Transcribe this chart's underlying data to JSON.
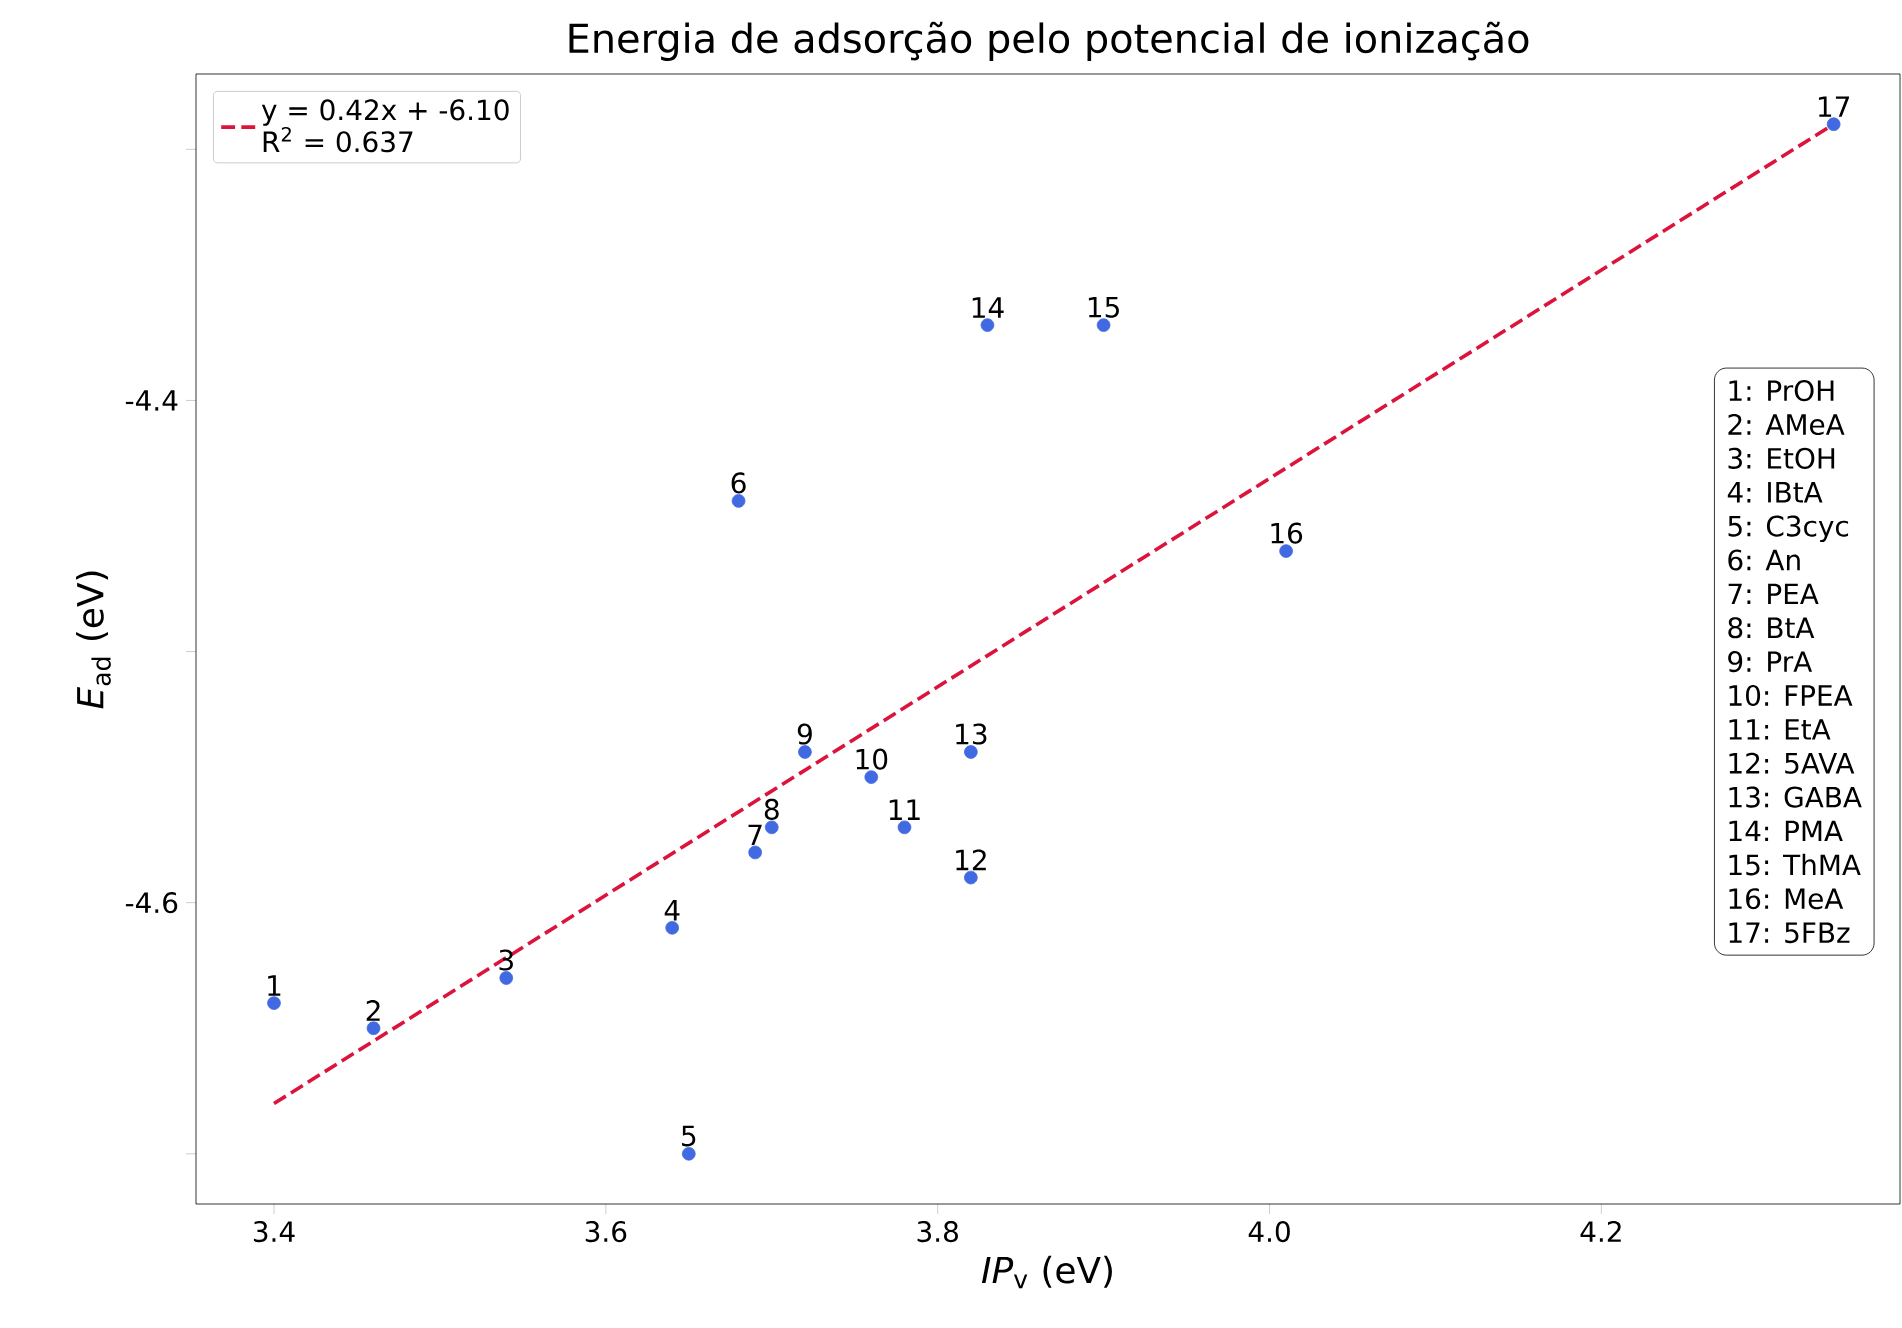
{
  "chart_data": {
    "type": "scatter",
    "title": "Energia de adsorção pelo potencial de ionização",
    "xlabel": "*IP*$_{v}$ (eV)",
    "ylabel": "*E*$_{ad}$ (eV)",
    "xlim": [
      3.353,
      4.38
    ],
    "ylim": [
      -4.72,
      -4.27
    ],
    "xticks": [
      3.4,
      3.6,
      3.8,
      {
        "value": 4.0,
        "label": "4.0"
      },
      4.2
    ],
    "yticks": [
      {
        "value": -4.7,
        "label": null
      },
      -4.6,
      {
        "value": -4.5,
        "label": null
      },
      -4.4,
      {
        "value": -4.3,
        "label": null
      }
    ],
    "grid": false,
    "legend": "top left",
    "series": [
      {
        "type": "scatter",
        "marker": "circle",
        "color": "#4169e1",
        "x": [
          3.4,
          3.46,
          3.54,
          3.64,
          3.65,
          3.68,
          3.69,
          3.7,
          3.72,
          3.76,
          3.78,
          3.82,
          3.82,
          3.83,
          3.9,
          4.01,
          4.34
        ],
        "values": [
          -4.64,
          -4.65,
          -4.63,
          -4.61,
          -4.7,
          -4.44,
          -4.58,
          -4.57,
          -4.54,
          -4.55,
          -4.57,
          -4.59,
          -4.54,
          -4.37,
          -4.37,
          -4.46,
          -4.29
        ]
      },
      {
        "type": "line",
        "name": "y = 0.42x + -6.10",
        "color": "#dc143c",
        "line_style": "dashed",
        "marker": "none",
        "x": [
          3.4,
          4.34
        ],
        "values": [
          -4.68,
          -4.29
        ]
      }
    ],
    "annotations": [
      "R$^{2}$ = 0.637",
      {
        "text": "1",
        "x": 3.4,
        "y": -4.64
      },
      {
        "text": "2",
        "x": 3.46,
        "y": -4.65
      },
      {
        "text": "3",
        "x": 3.54,
        "y": -4.63
      },
      {
        "text": "4",
        "x": 3.64,
        "y": -4.61
      },
      {
        "text": "5",
        "x": 3.65,
        "y": -4.7
      },
      {
        "text": "6",
        "x": 3.68,
        "y": -4.44
      },
      {
        "text": "7",
        "x": 3.69,
        "y": -4.58
      },
      {
        "text": "8",
        "x": 3.7,
        "y": -4.57
      },
      {
        "text": "9",
        "x": 3.72,
        "y": -4.54
      },
      {
        "text": "10",
        "x": 3.76,
        "y": -4.55
      },
      {
        "text": "11",
        "x": 3.78,
        "y": -4.57
      },
      {
        "text": "12",
        "x": 3.82,
        "y": -4.59
      },
      {
        "text": "13",
        "x": 3.82,
        "y": -4.54
      },
      {
        "text": "14",
        "x": 3.83,
        "y": -4.37
      },
      {
        "text": "15",
        "x": 3.9,
        "y": -4.37
      },
      {
        "text": "16",
        "x": 4.01,
        "y": -4.46
      },
      {
        "text": "17",
        "x": 4.34,
        "y": -4.29
      },
      "1: PrOH",
      "2: AMeA",
      "3: EtOH",
      "4: IBtA",
      "5: C3cyc",
      "6: An",
      "7: PEA",
      "8: BtA",
      "9: PrA",
      "10: FPEA",
      "11: EtA",
      "12: 5AVA",
      "13: GABA",
      "14: PMA",
      "15: ThMA",
      "16: MeA",
      "17: 5FBz"
    ]
  }
}
